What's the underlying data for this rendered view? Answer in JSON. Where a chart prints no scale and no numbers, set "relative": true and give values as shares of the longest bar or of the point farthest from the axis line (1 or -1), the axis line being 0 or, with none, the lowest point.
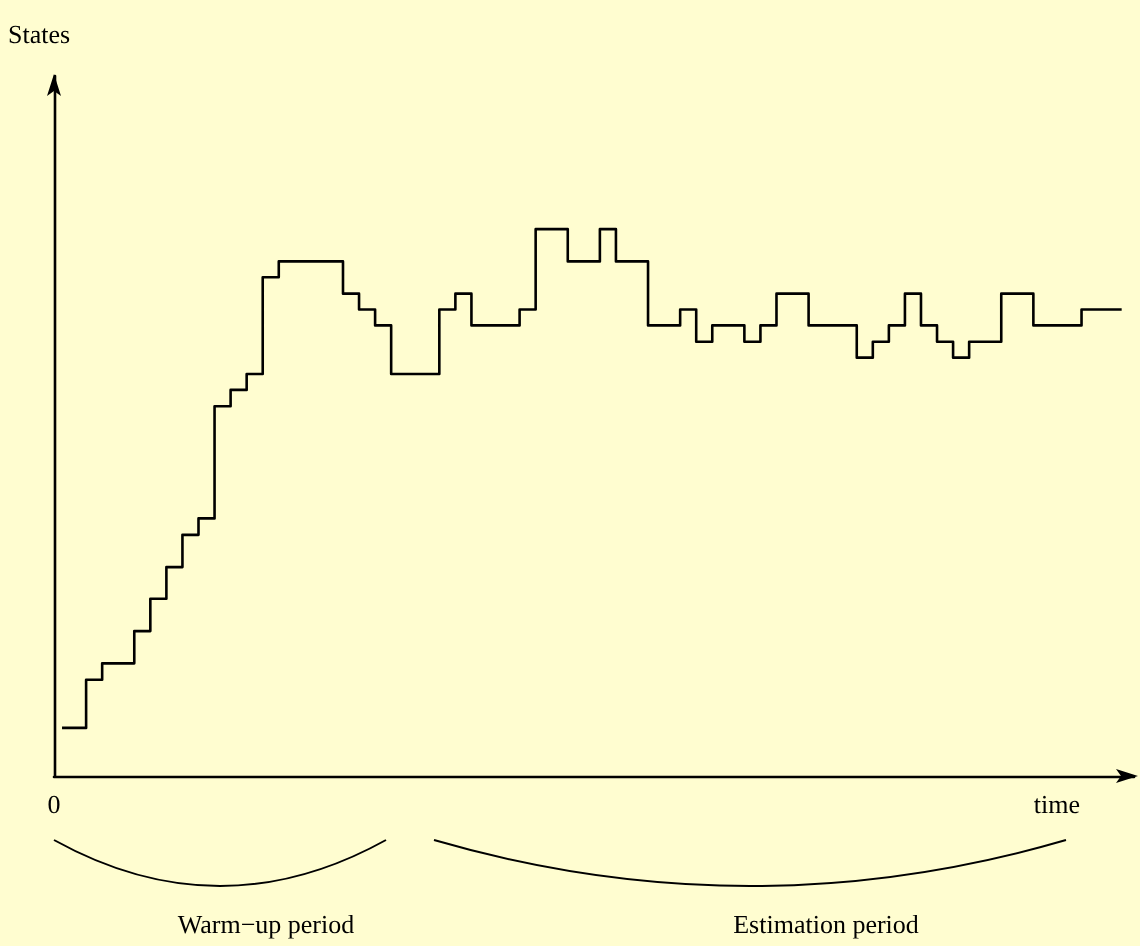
{
  "chart_data": {
    "type": "step",
    "relative": true,
    "xlabel": "time",
    "color": "#000000",
    "annotations": [
      "0",
      "Warm−up period",
      "Estimation period",
      "States"
    ],
    "categories": [
      null,
      null,
      null,
      null,
      null,
      null,
      null,
      null,
      null,
      null,
      null,
      null,
      null,
      null,
      null,
      null,
      null,
      null,
      null,
      null,
      null,
      null,
      null,
      null,
      null,
      null,
      null,
      null,
      null,
      null,
      null,
      null,
      null,
      null,
      null,
      null,
      null,
      null,
      null,
      null,
      null,
      null,
      null,
      null,
      null,
      null,
      null,
      null,
      null,
      null,
      null,
      null,
      null,
      null,
      null,
      null,
      null,
      null,
      null,
      null,
      null,
      null,
      null,
      null,
      null,
      null,
      null
    ],
    "values": [
      0.088,
      0.088,
      0.176,
      0.206,
      0.206,
      0.265,
      0.324,
      0.382,
      0.441,
      0.471,
      0.676,
      0.706,
      0.735,
      0.912,
      0.941,
      0.941,
      0.941,
      0.941,
      0.882,
      0.853,
      0.824,
      0.735,
      0.735,
      0.735,
      0.853,
      0.882,
      0.824,
      0.824,
      0.824,
      0.853,
      1,
      1,
      0.941,
      0.941,
      1,
      0.941,
      0.941,
      0.824,
      0.824,
      0.853,
      0.794,
      0.824,
      0.824,
      0.794,
      0.824,
      0.882,
      0.882,
      0.824,
      0.824,
      0.824,
      0.765,
      0.794,
      0.824,
      0.882,
      0.824,
      0.794,
      0.765,
      0.794,
      0.794,
      0.882,
      0.882,
      0.824,
      0.824,
      0.824,
      0.853,
      0.853,
      0.853
    ],
    "grid": false,
    "marker": "none",
    "line_style": "solid"
  }
}
